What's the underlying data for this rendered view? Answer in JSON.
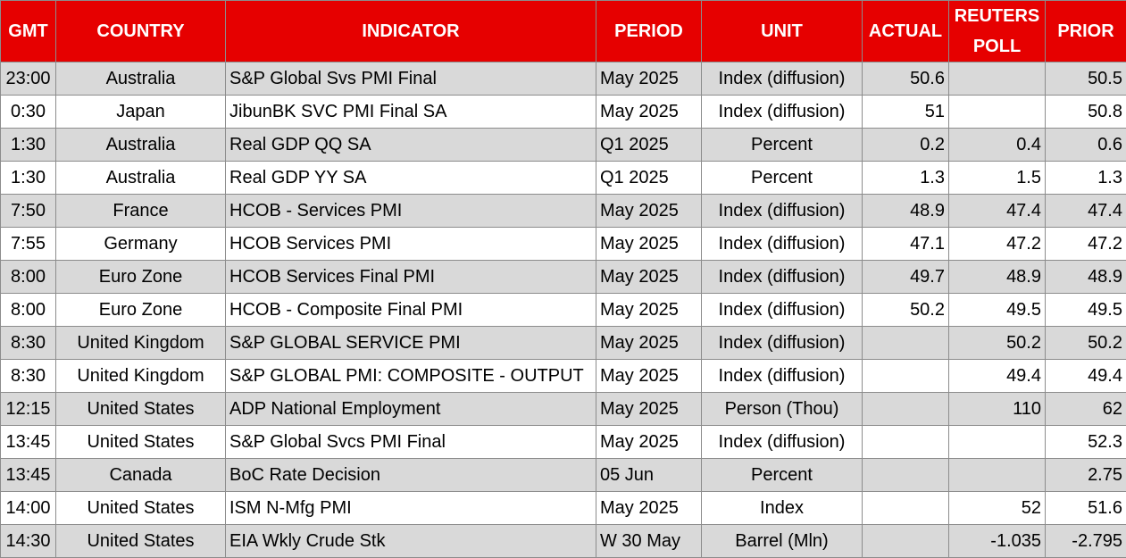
{
  "table": {
    "header": [
      "GMT",
      "COUNTRY",
      "INDICATOR",
      "PERIOD",
      "UNIT",
      "ACTUAL",
      "REUTERS POLL",
      "PRIOR"
    ],
    "rows": [
      [
        "23:00",
        "Australia",
        "S&P Global Svs PMI Final",
        "May 2025",
        "Index (diffusion)",
        "50.6",
        null,
        "50.5"
      ],
      [
        "0:30",
        "Japan",
        "JibunBK SVC PMI Final SA",
        "May 2025",
        "Index (diffusion)",
        "51",
        null,
        "50.8"
      ],
      [
        "1:30",
        "Australia",
        "Real GDP QQ SA",
        "Q1 2025",
        "Percent",
        "0.2",
        "0.4",
        "0.6"
      ],
      [
        "1:30",
        "Australia",
        "Real GDP YY SA",
        "Q1 2025",
        "Percent",
        "1.3",
        "1.5",
        "1.3"
      ],
      [
        "7:50",
        "France",
        "HCOB - Services PMI",
        "May 2025",
        "Index (diffusion)",
        "48.9",
        "47.4",
        "47.4"
      ],
      [
        "7:55",
        "Germany",
        "HCOB Services PMI",
        "May 2025",
        "Index (diffusion)",
        "47.1",
        "47.2",
        "47.2"
      ],
      [
        "8:00",
        "Euro Zone",
        "HCOB Services Final PMI",
        "May 2025",
        "Index (diffusion)",
        "49.7",
        "48.9",
        "48.9"
      ],
      [
        "8:00",
        "Euro Zone",
        "HCOB - Composite Final PMI",
        "May 2025",
        "Index (diffusion)",
        "50.2",
        "49.5",
        "49.5"
      ],
      [
        "8:30",
        "United Kingdom",
        "S&P GLOBAL SERVICE PMI",
        "May 2025",
        "Index (diffusion)",
        null,
        "50.2",
        "50.2"
      ],
      [
        "8:30",
        "United Kingdom",
        "S&P GLOBAL PMI: COMPOSITE - OUTPUT",
        "May 2025",
        "Index (diffusion)",
        null,
        "49.4",
        "49.4"
      ],
      [
        "12:15",
        "United States",
        "ADP National Employment",
        "May 2025",
        "Person (Thou)",
        null,
        "110",
        "62"
      ],
      [
        "13:45",
        "United States",
        "S&P Global Svcs PMI Final",
        "May 2025",
        "Index (diffusion)",
        null,
        null,
        "52.3"
      ],
      [
        "13:45",
        "Canada",
        "BoC Rate Decision",
        "05 Jun",
        "Percent",
        null,
        null,
        "2.75"
      ],
      [
        "14:00",
        "United States",
        "ISM N-Mfg PMI",
        "May 2025",
        "Index",
        null,
        "52",
        "51.6"
      ],
      [
        "14:30",
        "United States",
        "EIA Wkly Crude Stk",
        "W 30 May",
        "Barrel (Mln)",
        null,
        "-1.035",
        "-2.795"
      ]
    ]
  }
}
